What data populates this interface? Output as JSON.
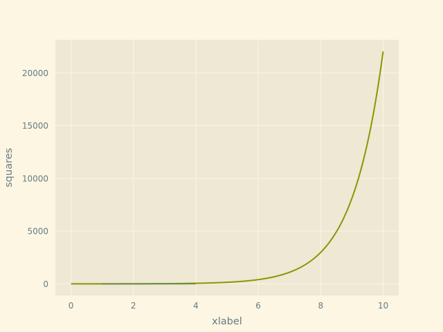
{
  "colors": {
    "figure_background": "#fdf6e3",
    "axes_background": "#eee8d5",
    "grid": "#fdf6e3",
    "text": "#657b83"
  },
  "chart_data": {
    "type": "line",
    "title": "",
    "xlabel": "xlabel",
    "ylabel": "squares",
    "xlim": [
      -0.5,
      10.5
    ],
    "ylim": [
      -1101.3,
      23127.7
    ],
    "xticks": [
      0,
      2,
      4,
      6,
      8,
      10
    ],
    "xtick_labels": [
      "0",
      "2",
      "4",
      "6",
      "8",
      "10"
    ],
    "yticks": [
      0,
      5000,
      10000,
      15000,
      20000
    ],
    "ytick_labels": [
      "0",
      "5000",
      "10000",
      "15000",
      "20000"
    ],
    "grid": true,
    "legend": "none",
    "series": [
      {
        "color": "#859900",
        "curve": "y = e^x",
        "x": [
          0,
          1,
          2,
          3,
          4,
          5,
          6,
          6.5,
          7,
          7.5,
          8,
          8.25,
          8.5,
          8.75,
          9,
          9.25,
          9.5,
          9.75,
          10
        ],
        "y": [
          1,
          2.7,
          7.4,
          20.1,
          54.6,
          148.4,
          403.4,
          665.1,
          1096.6,
          1808.0,
          2981.0,
          3827.6,
          4914.8,
          6310.7,
          8103.1,
          10404.6,
          13359.7,
          17154.2,
          22026.5
        ]
      },
      {
        "color": "#6c8f3a",
        "curve": "y = x^2",
        "x": [
          1,
          2,
          3,
          4
        ],
        "y": [
          1,
          4,
          9,
          16
        ]
      }
    ]
  }
}
